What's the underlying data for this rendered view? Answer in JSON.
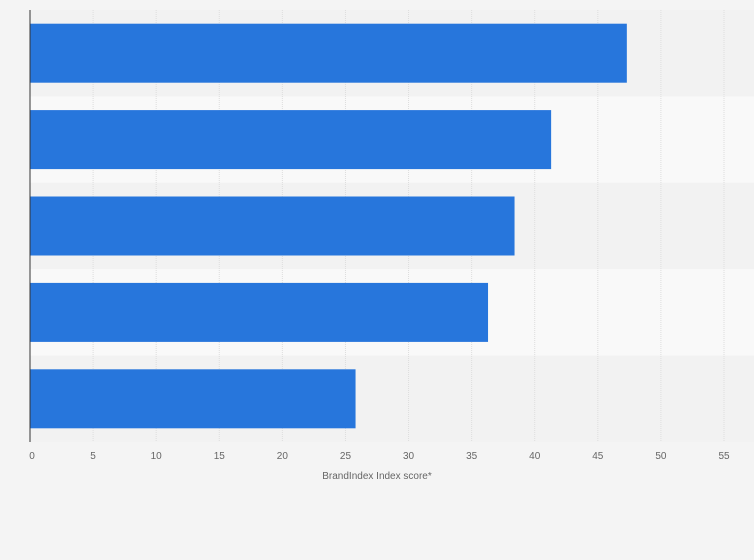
{
  "chart_data": {
    "type": "bar",
    "orientation": "horizontal",
    "categories": [
      "",
      "",
      "",
      "",
      ""
    ],
    "values": [
      47.3,
      41.3,
      38.4,
      36.3,
      25.8
    ],
    "title": "",
    "xlabel": "BrandIndex Index score*",
    "ylabel": "",
    "xlim": [
      0,
      55
    ],
    "xticks": [
      0,
      5,
      10,
      15,
      20,
      25,
      30,
      35,
      40,
      45,
      50,
      55
    ],
    "grid": true,
    "legend": "none"
  },
  "colors": {
    "bar": "#2776dc",
    "band_light": "#f9f9f9",
    "band_dark": "#f2f2f2",
    "background": "#f4f4f4",
    "grid": "#dddddd",
    "axis": "#333333",
    "text": "#666666"
  }
}
